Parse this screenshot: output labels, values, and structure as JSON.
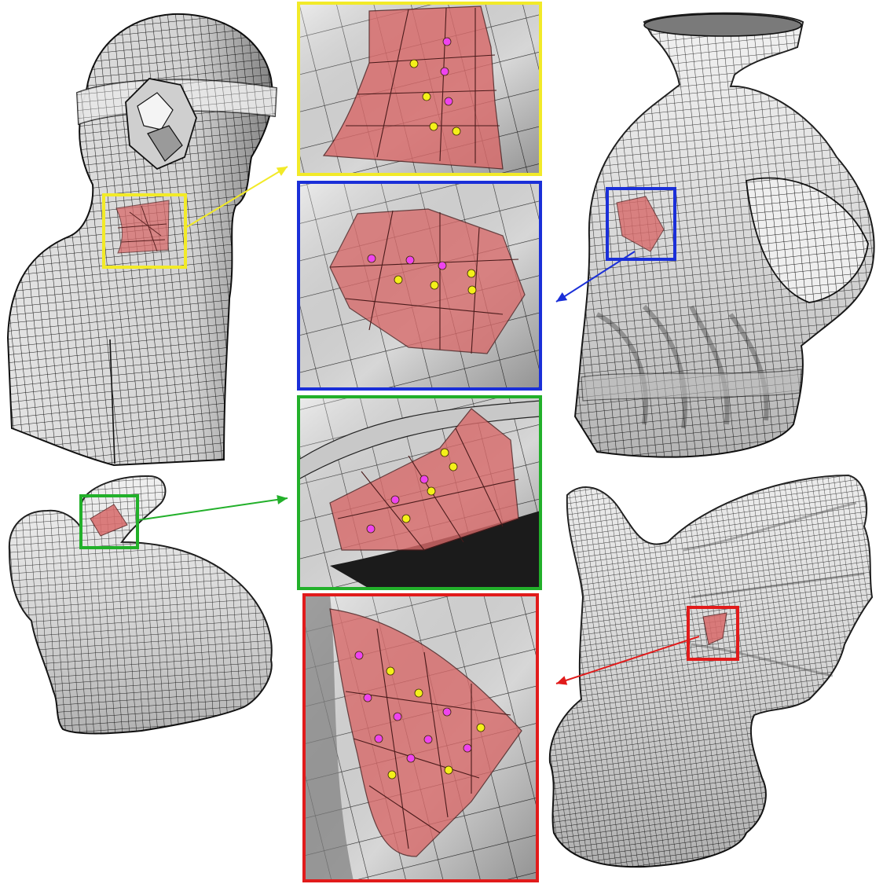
{
  "figure": {
    "models": [
      {
        "id": "bust",
        "highlight_color": "#f2ea28"
      },
      {
        "id": "lion-vase",
        "highlight_color": "#1a2fd8"
      },
      {
        "id": "bunny",
        "highlight_color": "#22b02a"
      },
      {
        "id": "gargoyle",
        "highlight_color": "#e11b1b"
      }
    ],
    "patch_color": "#d86a6a",
    "vertex_colors": {
      "magenta": "#ee44ee",
      "yellow": "#f4f01a"
    }
  }
}
